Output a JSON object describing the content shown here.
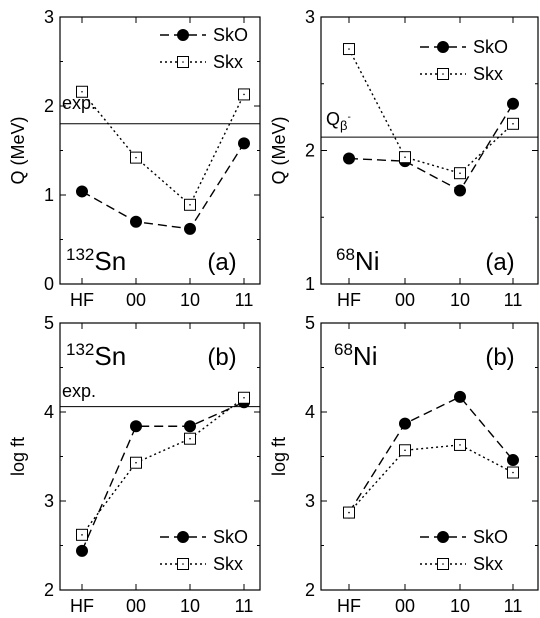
{
  "chart_data": [
    {
      "type": "line",
      "categories": [
        "HF",
        "00",
        "10",
        "11"
      ],
      "ylabel": "Q (MeV)",
      "ylim": [
        0,
        3
      ],
      "yticks": [
        "0",
        "1",
        "2",
        "3"
      ],
      "panel_label": "(a)",
      "nucleus": {
        "mass": "132",
        "symbol": "Sn"
      },
      "reference": {
        "label": "exp.",
        "value": 1.8
      },
      "legend_position": "top-right",
      "series": [
        {
          "name": "SkO",
          "values": [
            1.04,
            0.7,
            0.62,
            1.58
          ],
          "style": "dashed",
          "marker": "filled-circle"
        },
        {
          "name": "Skx",
          "values": [
            2.16,
            1.42,
            0.89,
            2.13
          ],
          "style": "dotted",
          "marker": "open-square"
        }
      ]
    },
    {
      "type": "line",
      "categories": [
        "HF",
        "00",
        "10",
        "11"
      ],
      "ylabel": "Q (MeV)",
      "ylim": [
        1,
        3
      ],
      "yticks": [
        "1",
        "2",
        "3"
      ],
      "panel_label": "(a)",
      "nucleus": {
        "mass": "68",
        "symbol": "Ni"
      },
      "reference": {
        "label_main": "Q",
        "label_sub": "β",
        "label_sup": "-",
        "value": 2.1
      },
      "legend_position": "top-right",
      "series": [
        {
          "name": "SkO",
          "values": [
            1.94,
            1.92,
            1.7,
            2.35
          ],
          "style": "dashed",
          "marker": "filled-circle"
        },
        {
          "name": "Skx",
          "values": [
            2.76,
            1.95,
            1.83,
            2.2
          ],
          "style": "dotted",
          "marker": "open-square"
        }
      ]
    },
    {
      "type": "line",
      "categories": [
        "HF",
        "00",
        "10",
        "11"
      ],
      "ylabel": "log ft",
      "ylim": [
        2,
        5
      ],
      "yticks": [
        "2",
        "3",
        "4",
        "5"
      ],
      "panel_label": "(b)",
      "nucleus": {
        "mass": "132",
        "symbol": "Sn"
      },
      "reference": {
        "label": "exp.",
        "value": 4.06
      },
      "legend_position": "bottom-right",
      "series": [
        {
          "name": "SkO",
          "values": [
            2.44,
            3.84,
            3.84,
            4.11
          ],
          "style": "dashed",
          "marker": "filled-circle"
        },
        {
          "name": "Skx",
          "values": [
            2.62,
            3.43,
            3.7,
            4.16
          ],
          "style": "dotted",
          "marker": "open-square"
        }
      ]
    },
    {
      "type": "line",
      "categories": [
        "HF",
        "00",
        "10",
        "11"
      ],
      "ylabel": "log ft",
      "ylim": [
        2,
        5
      ],
      "yticks": [
        "2",
        "3",
        "4",
        "5"
      ],
      "panel_label": "(b)",
      "nucleus": {
        "mass": "68",
        "symbol": "Ni"
      },
      "legend_position": "bottom-right",
      "series": [
        {
          "name": "SkO",
          "values": [
            2.87,
            3.87,
            4.17,
            3.46
          ],
          "style": "dashed",
          "marker": "filled-circle"
        },
        {
          "name": "Skx",
          "values": [
            2.87,
            3.57,
            3.63,
            3.32
          ],
          "style": "dotted",
          "marker": "open-square"
        }
      ]
    }
  ]
}
